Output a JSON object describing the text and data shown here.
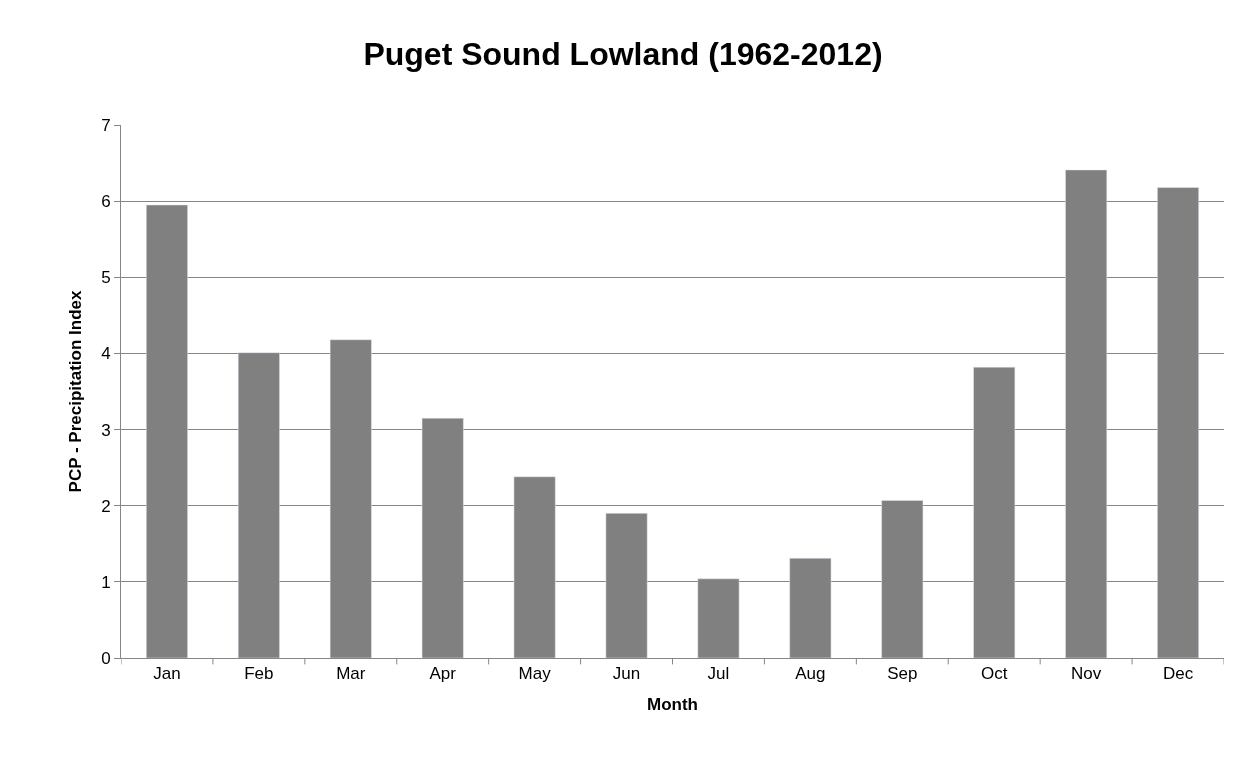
{
  "chart_data": {
    "type": "bar",
    "title": "Puget Sound Lowland (1962-2012)",
    "xlabel": "Month",
    "ylabel": "PCP - Precipitation Index",
    "categories": [
      "Jan",
      "Feb",
      "Mar",
      "Apr",
      "May",
      "Jun",
      "Jul",
      "Aug",
      "Sep",
      "Oct",
      "Nov",
      "Dec"
    ],
    "values": [
      5.95,
      4.01,
      4.18,
      3.15,
      2.38,
      1.9,
      1.04,
      1.31,
      2.07,
      3.82,
      6.41,
      6.18
    ],
    "color": "#808080",
    "ylim": [
      0,
      7
    ],
    "yticks": [
      0,
      1,
      2,
      3,
      4,
      5,
      6,
      7
    ],
    "grid": "y",
    "legend": false
  }
}
